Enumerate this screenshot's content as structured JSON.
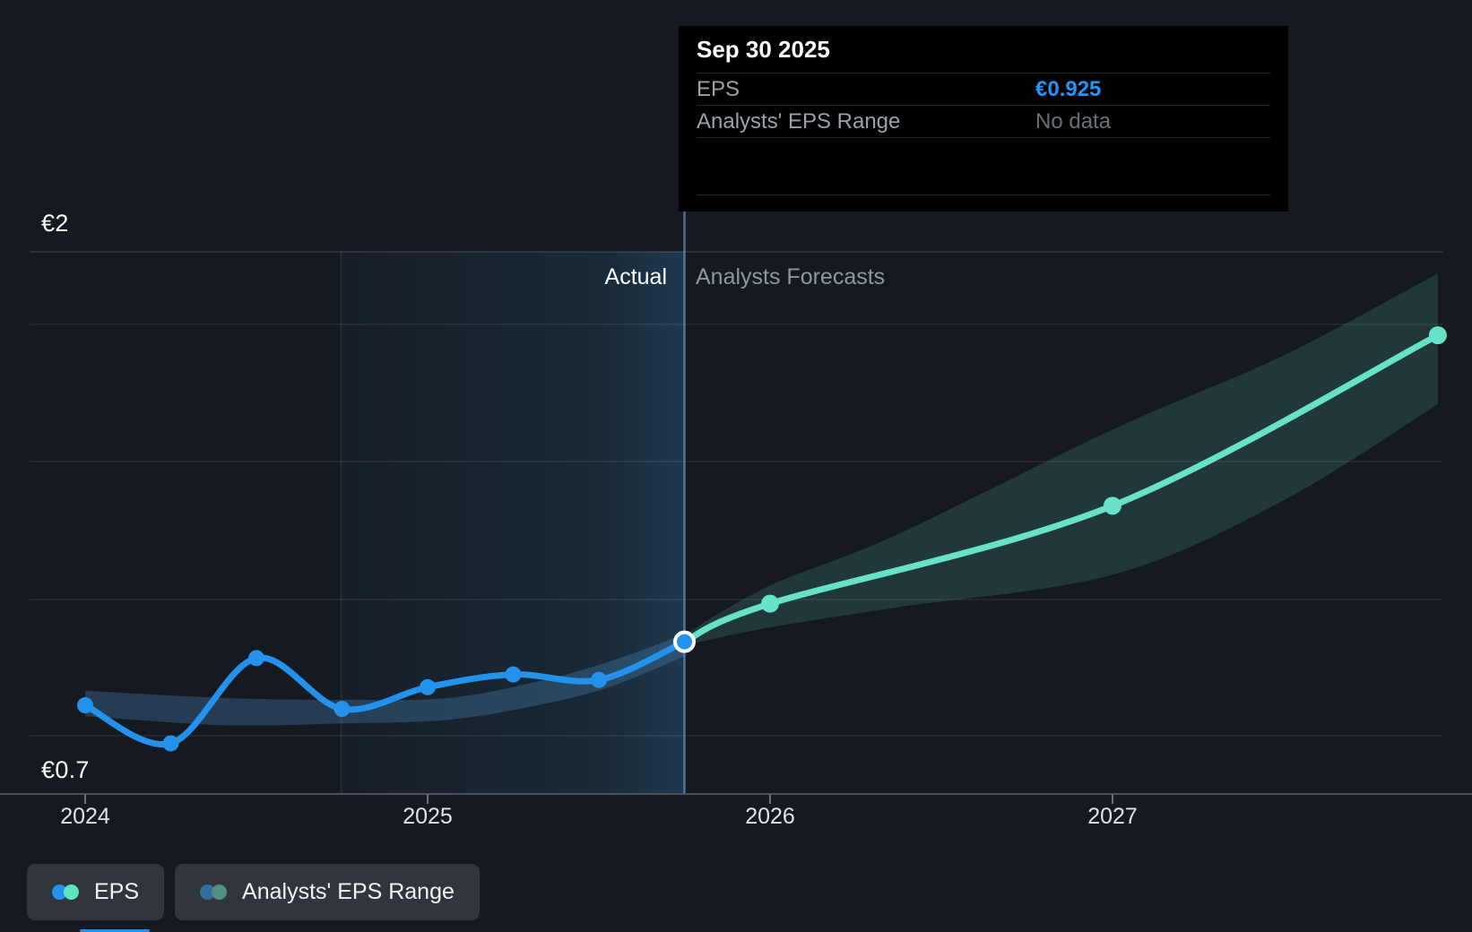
{
  "tooltip": {
    "title": "Sep 30 2025",
    "rows": [
      {
        "label": "EPS",
        "value": "€0.925",
        "style": "blue"
      },
      {
        "label": "Analysts' EPS Range",
        "value": "No data",
        "style": "muted"
      }
    ]
  },
  "zones": {
    "actual_label": "Actual",
    "forecast_label": "Analysts Forecasts"
  },
  "axis": {
    "y_top_label": "€2",
    "y_bottom_label": "€0.7",
    "x_tick_labels": [
      "2024",
      "2025",
      "2026",
      "2027"
    ]
  },
  "legend": {
    "items": [
      {
        "label": "EPS",
        "dot_colors": [
          "#2492ec",
          "#5fe3c4"
        ]
      },
      {
        "label": "Analysts' EPS Range",
        "dot_colors": [
          "#33709b",
          "#4f8f85"
        ]
      }
    ]
  },
  "colors": {
    "background": "#151a21",
    "eps_line": "#2492ec",
    "forecast_line": "#67e2c9",
    "actual_band": "rgba(86,156,214,0.27)",
    "forecast_band": "rgba(103,226,201,0.15)",
    "tooltip_value_blue": "#2196f3",
    "gridline": "rgba(255,255,255,0.08)",
    "divider_line": "rgba(125,180,220,0.55)"
  },
  "chart_data": {
    "type": "line",
    "title": "EPS actual vs analysts forecast",
    "currency": "EUR",
    "ylim": [
      0.7,
      2.0
    ],
    "y_axis_labels": [
      "€2",
      "€0.7"
    ],
    "x_ticks": [
      2024,
      2025,
      2026,
      2027
    ],
    "highlight_point": {
      "date": "Sep 30 2025",
      "eps": 0.925,
      "analysts_eps_range": "No data"
    },
    "series": [
      {
        "name": "EPS",
        "kind": "actual",
        "dates": [
          "Dec 31 2023",
          "Mar 31 2024",
          "Jun 30 2024",
          "Sep 30 2024",
          "Dec 31 2024",
          "Mar 31 2025",
          "Jun 30 2025",
          "Sep 30 2025"
        ],
        "t": [
          2024.0,
          2024.25,
          2024.5,
          2024.75,
          2025.0,
          2025.25,
          2025.5,
          2025.75
        ],
        "values": [
          0.75,
          0.645,
          0.88,
          0.74,
          0.8,
          0.835,
          0.82,
          0.925
        ]
      },
      {
        "name": "EPS analysts forecast",
        "kind": "forecast",
        "dates": [
          "Sep 30 2025",
          "Dec 31 2025",
          "Dec 31 2026",
          "Dec 31 2027"
        ],
        "t": [
          2025.75,
          2026.0,
          2027.0,
          2027.95
        ],
        "values": [
          0.925,
          1.03,
          1.3,
          1.77
        ]
      }
    ],
    "actual_range_band": {
      "t": [
        2024.0,
        2024.41,
        2024.75,
        2025.06,
        2025.32,
        2025.53,
        2025.75
      ],
      "high": [
        0.79,
        0.77,
        0.765,
        0.77,
        0.815,
        0.87,
        0.945
      ],
      "low": [
        0.72,
        0.695,
        0.7,
        0.71,
        0.75,
        0.8,
        0.885
      ]
    },
    "forecast_range_band": {
      "t": [
        2025.75,
        2026.0,
        2026.37,
        2027.0,
        2027.49,
        2027.95
      ],
      "high": [
        0.945,
        1.08,
        1.22,
        1.51,
        1.71,
        1.94
      ],
      "low": [
        0.915,
        0.965,
        1.02,
        1.11,
        1.31,
        1.58
      ]
    },
    "layout_hints": {
      "grid": "horizontal-only",
      "legend_position": "bottom-left",
      "actual_forecast_divider_date": "Sep 30 2025"
    }
  }
}
